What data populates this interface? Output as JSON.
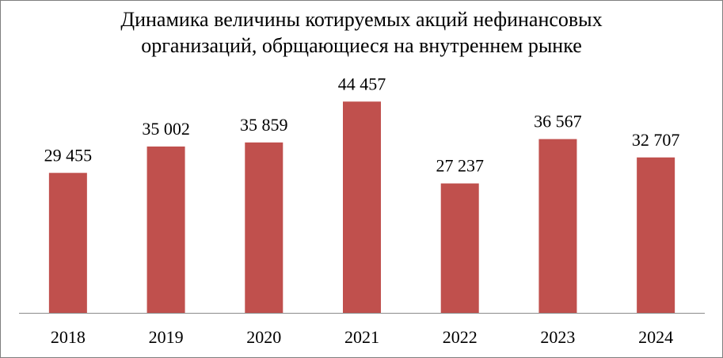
{
  "chart_data": {
    "type": "bar",
    "title_lines": [
      "Динамика величины котируемых акций нефинансовых",
      "организаций, обрщающиеся на внутреннем рынке"
    ],
    "categories": [
      "2018",
      "2019",
      "2020",
      "2021",
      "2022",
      "2023",
      "2024"
    ],
    "values": [
      29455,
      35002,
      35859,
      44457,
      27237,
      36567,
      32707
    ],
    "value_labels": [
      "29 455",
      "35 002",
      "35 859",
      "44 457",
      "27 237",
      "36 567",
      "32 707"
    ],
    "ylim": [
      0,
      50000
    ],
    "grid": false,
    "legend": "none",
    "bar_color": "#c0504d",
    "axis_color": "#8c8c8c"
  }
}
